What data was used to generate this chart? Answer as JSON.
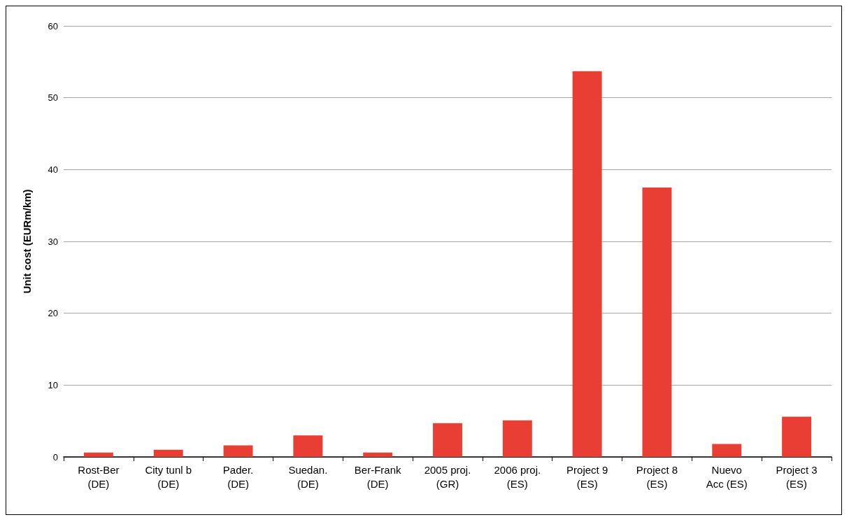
{
  "chart_data": {
    "type": "bar",
    "ylabel": "Unit cost (EURm/km)",
    "categories": [
      "Rost-Ber\n(DE)",
      "City tunl b\n(DE)",
      "Pader.\n(DE)",
      "Suedan.\n(DE)",
      "Ber-Frank\n(DE)",
      "2005 proj.\n(GR)",
      "2006 proj.\n(ES)",
      "Project 9\n(ES)",
      "Project 8\n(ES)",
      "Nuevo\nAcc (ES)",
      "Project 3\n(ES)"
    ],
    "values": [
      0.6,
      1.0,
      1.6,
      3.0,
      0.6,
      4.7,
      5.1,
      53.7,
      37.5,
      1.8,
      5.6
    ],
    "color": "#e83e33",
    "ylim": [
      0,
      60
    ],
    "yticks": [
      0,
      10,
      20,
      30,
      40,
      50,
      60
    ],
    "grid": "y"
  }
}
